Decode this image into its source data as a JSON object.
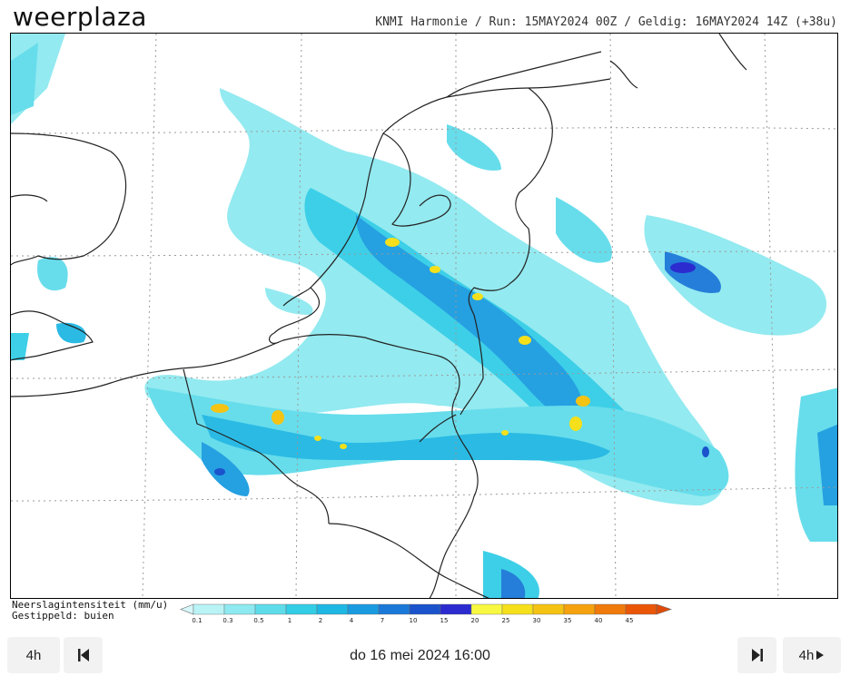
{
  "brand": {
    "part1": "weer",
    "part2": "plaza"
  },
  "run_info": "KNMI Harmonie / Run: 15MAY2024 00Z / Geldig: 16MAY2024 14Z (+38u)",
  "legend": {
    "title": "Neerslagintensiteit (mm/u)",
    "subtitle": "Gestippeld: buien",
    "ticks": [
      "0.1",
      "0.3",
      "0.5",
      "1",
      "2",
      "4",
      "7",
      "10",
      "15",
      "20",
      "25",
      "30",
      "35",
      "40",
      "45"
    ],
    "colors": [
      "#b9f3f5",
      "#8ee9f0",
      "#5fdcea",
      "#33cde6",
      "#1fb7e3",
      "#1a9be0",
      "#1a78d8",
      "#1a53cc",
      "#2b2bd0",
      "#f8f842",
      "#f5e01b",
      "#f5c313",
      "#f5a20e",
      "#f07a0b",
      "#ea5608"
    ]
  },
  "nav": {
    "step_back_label": "4h",
    "step_fwd_label": "4h",
    "date_text": "do 16 mei 2024 16:00"
  }
}
